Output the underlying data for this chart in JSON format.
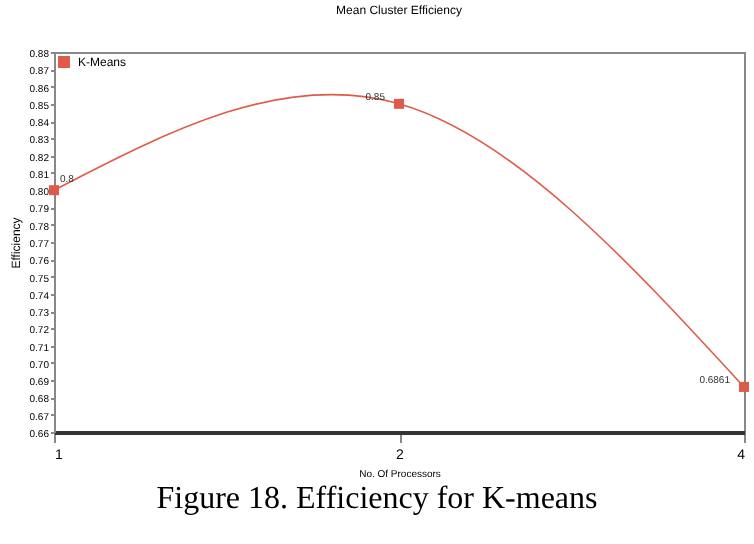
{
  "chart_data": {
    "type": "line",
    "title": "Mean Cluster Efficiency",
    "xlabel": "No. Of Processors",
    "ylabel": "Efficiency",
    "annotations": [
      "Figure 18. Efficiency for K-means"
    ],
    "categories": [
      "1",
      "2",
      "4"
    ],
    "series": [
      {
        "name": "K-Means",
        "color": "#e05a4a",
        "values": [
          0.8,
          0.85,
          0.6861
        ],
        "value_labels": [
          "0.8",
          "0.85",
          "0.6861"
        ]
      }
    ],
    "ylim": [
      0.66,
      0.88
    ],
    "yticks": [
      0.66,
      0.67,
      0.68,
      0.69,
      {
        "value": 0.7,
        "label": "0.70"
      },
      0.71,
      0.72,
      0.73,
      0.74,
      0.75,
      0.76,
      0.77,
      0.78,
      0.79,
      {
        "value": 0.8,
        "label": "0.80"
      },
      0.81,
      0.82,
      0.83,
      0.84,
      0.85,
      0.86,
      0.87,
      0.88
    ],
    "marker": "square",
    "legend": "top left",
    "grid": false
  }
}
